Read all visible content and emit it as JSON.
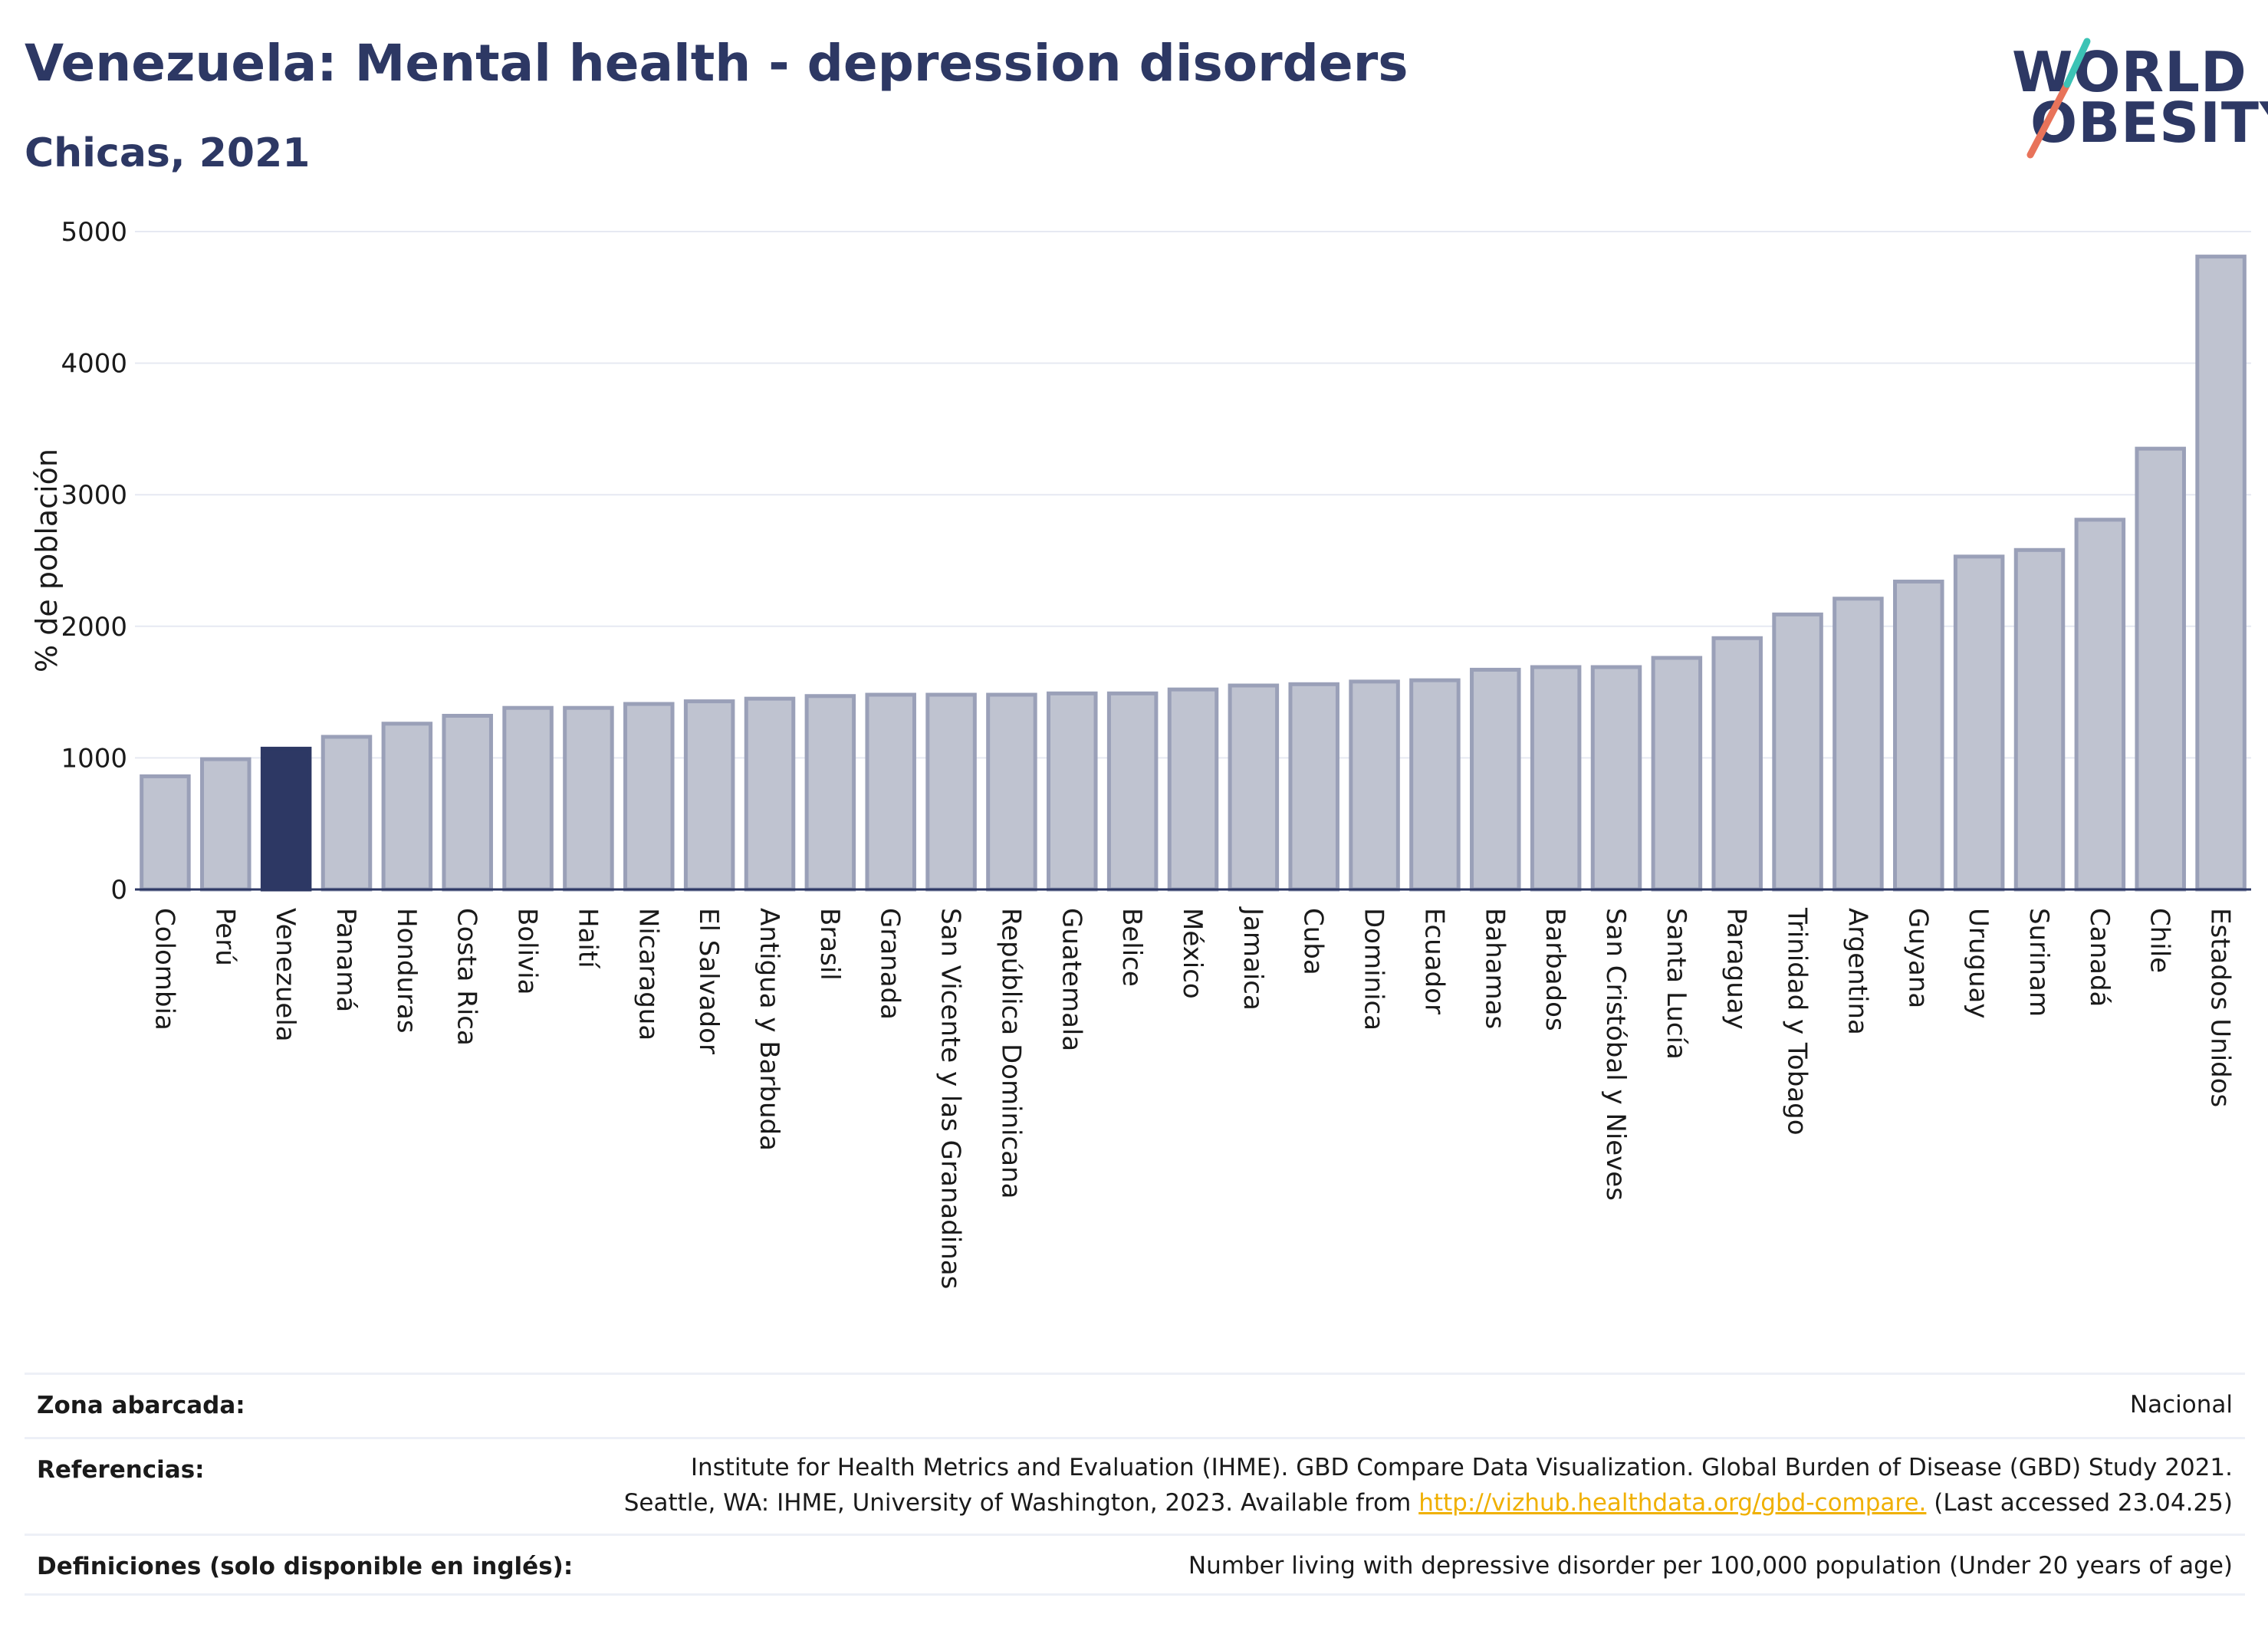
{
  "header": {
    "title": "Venezuela: Mental health - depression disorders",
    "subtitle": "Chicas, 2021"
  },
  "logo": {
    "line1": "WORLD",
    "line2": "OBESITY",
    "colors": [
      "#2d3864",
      "#e8735a",
      "#3cc3b5"
    ]
  },
  "chart_data": {
    "type": "bar",
    "ylabel": "% de población",
    "ylim": [
      0,
      5000
    ],
    "yticks": [
      0,
      1000,
      2000,
      3000,
      4000,
      5000
    ],
    "grid": true,
    "highlight": "Venezuela",
    "colors": {
      "bar": "#bfc3d0",
      "bar_border": "#9aa0b8",
      "highlight": "#2d3864",
      "grid": "#e6e9f2",
      "axis": "#2d3864"
    },
    "categories": [
      "Colombia",
      "Perú",
      "Venezuela",
      "Panamá",
      "Honduras",
      "Costa Rica",
      "Bolivia",
      "Haití",
      "Nicaragua",
      "El Salvador",
      "Antigua y Barbuda",
      "Brasil",
      "Granada",
      "San Vicente y las Granadinas",
      "República Dominicana",
      "Guatemala",
      "Belice",
      "México",
      "Jamaica",
      "Cuba",
      "Dominica",
      "Ecuador",
      "Bahamas",
      "Barbados",
      "San Cristóbal y Nieves",
      "Santa Lucía",
      "Paraguay",
      "Trinidad y Tobago",
      "Argentina",
      "Guyana",
      "Uruguay",
      "Surinam",
      "Canadá",
      "Chile",
      "Estados Unidos"
    ],
    "values": [
      860,
      990,
      1070,
      1160,
      1260,
      1320,
      1380,
      1380,
      1410,
      1430,
      1450,
      1470,
      1480,
      1480,
      1480,
      1490,
      1490,
      1520,
      1550,
      1560,
      1580,
      1590,
      1670,
      1690,
      1690,
      1760,
      1910,
      2090,
      2210,
      2340,
      2530,
      2580,
      2810,
      3350,
      4810
    ]
  },
  "footer": {
    "zona_label": "Zona abarcada:",
    "zona_value": "Nacional",
    "ref_label": "Referencias:",
    "ref_line1": "Institute for Health Metrics and Evaluation (IHME). GBD Compare Data Visualization. Global Burden of Disease (GBD) Study 2021.",
    "ref_line2_pre": "Seattle, WA: IHME, University of Washington, 2023. Available from ",
    "ref_link": "http://vizhub.healthdata.org/gbd-compare.",
    "ref_line2_post": " (Last accessed 23.04.25)",
    "def_label": "Definiciones (solo disponible en inglés):",
    "def_value": "Number living with depressive disorder per 100,000 population (Under 20 years of age)"
  }
}
